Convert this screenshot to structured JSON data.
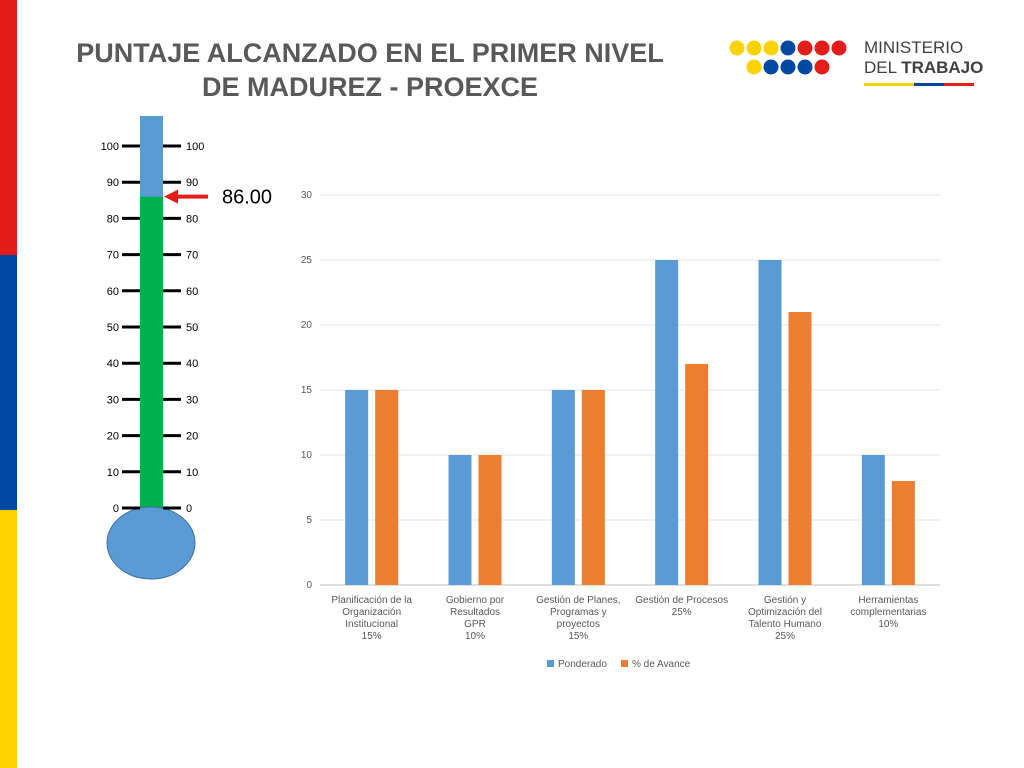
{
  "slide": {
    "title_line1": "PUNTAJE ALCANZADO EN EL PRIMER NIVEL",
    "title_line2": "DE MADUREZ - PROEXCE"
  },
  "logo": {
    "line1": "MINISTERIO",
    "line2a": "DEL",
    "line2b": "TRABAJO",
    "colors": {
      "yellow": "#fcd200",
      "blue": "#0049a3",
      "red": "#e31d1a"
    }
  },
  "thermometer": {
    "ticks": [
      "100",
      "90",
      "80",
      "70",
      "60",
      "50",
      "40",
      "30",
      "20",
      "10",
      "0"
    ],
    "value": 86,
    "value_label": "86.00",
    "colors": {
      "fill": "#00b04f",
      "empty": "#5b9bd5",
      "arrow": "#e31d1a"
    }
  },
  "chart_data": {
    "type": "bar",
    "categories": [
      [
        "Planificación de la",
        "Organización",
        "Institucional",
        "15%"
      ],
      [
        "Gobierno por",
        "Resultados",
        "GPR",
        "10%"
      ],
      [
        "Gestión de Planes,",
        "Programas y",
        "proyectos",
        "15%"
      ],
      [
        "Gestión de Procesos",
        "25%"
      ],
      [
        "Gestión y",
        "Optimización del",
        "Talento Humano",
        "25%"
      ],
      [
        "Herramientas",
        "complementarias",
        "10%"
      ]
    ],
    "series": [
      {
        "name": "Ponderado",
        "values": [
          15,
          10,
          15,
          25,
          25,
          10
        ],
        "color": "#5b9bd5"
      },
      {
        "name": "% de Avance",
        "values": [
          15,
          10,
          15,
          17,
          21,
          8
        ],
        "color": "#ed7d31"
      }
    ],
    "ylim": [
      0,
      30
    ],
    "yticks": [
      "0",
      "5",
      "10",
      "15",
      "20",
      "25",
      "30"
    ],
    "grid": true,
    "legend": "bottom"
  }
}
